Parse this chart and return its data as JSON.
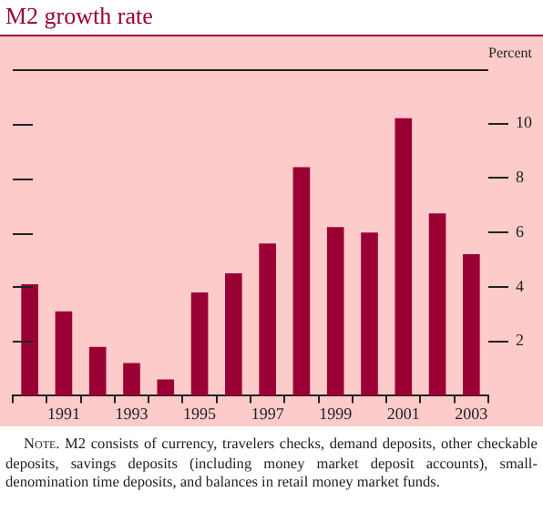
{
  "chart_data": {
    "type": "bar",
    "title": "M2 growth rate",
    "ylabel": "Percent",
    "categories": [
      null,
      "1991",
      null,
      "1993",
      null,
      "1995",
      null,
      "1997",
      null,
      "1999",
      null,
      "2001",
      null,
      "2003"
    ],
    "values": [
      4.1,
      3.1,
      1.8,
      1.2,
      0.6,
      3.8,
      4.5,
      5.6,
      8.4,
      6.2,
      6.0,
      10.2,
      6.7,
      5.2
    ],
    "color": "#9b0034",
    "ylim": [
      0,
      12
    ],
    "yticks": [
      2,
      4,
      6,
      8,
      10
    ],
    "grid": false,
    "annotations": [
      "Note. M2 consists of currency, travelers checks, demand deposits, other checkable deposits, savings deposits (including money market deposit accounts), small-denomination time deposits, and balances in retail money market funds."
    ]
  }
}
